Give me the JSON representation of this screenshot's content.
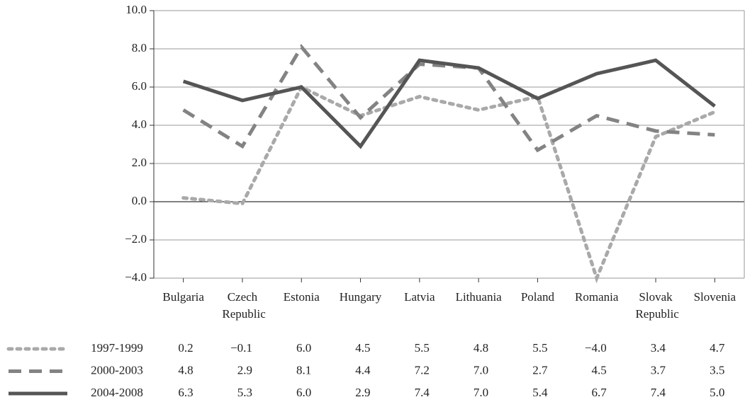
{
  "chart_data": {
    "type": "line",
    "categories": [
      "Bulgaria",
      "Czech Republic",
      "Estonia",
      "Hungary",
      "Latvia",
      "Lithuania",
      "Poland",
      "Romania",
      "Slovak Republic",
      "Slovenia"
    ],
    "ylim": [
      -4,
      10
    ],
    "yticks": [
      {
        "value": -4,
        "label": "−4.0"
      },
      {
        "value": -2,
        "label": "−2.0"
      },
      {
        "value": 0,
        "label": "0.0"
      },
      {
        "value": 2,
        "label": "2.0"
      },
      {
        "value": 4,
        "label": "4.0"
      },
      {
        "value": 6,
        "label": "6.0"
      },
      {
        "value": 8,
        "label": "8.0"
      },
      {
        "value": 10,
        "label": "10.0"
      }
    ],
    "grid": true,
    "series": [
      {
        "name": "1997-1999",
        "color": "#a9a9a9",
        "dash": "dotted",
        "values": [
          0.2,
          -0.1,
          6.0,
          4.5,
          5.5,
          4.8,
          5.5,
          -4.0,
          3.4,
          4.7
        ],
        "value_labels": [
          "0.2",
          "−0.1",
          "6.0",
          "4.5",
          "5.5",
          "4.8",
          "5.5",
          "−4.0",
          "3.4",
          "4.7"
        ]
      },
      {
        "name": "2000-2003",
        "color": "#838383",
        "dash": "dashed",
        "values": [
          4.8,
          2.9,
          8.1,
          4.4,
          7.2,
          7.0,
          2.7,
          4.5,
          3.7,
          3.5
        ],
        "value_labels": [
          "4.8",
          "2.9",
          "8.1",
          "4.4",
          "7.2",
          "7.0",
          "2.7",
          "4.5",
          "3.7",
          "3.5"
        ]
      },
      {
        "name": "2004-2008",
        "color": "#555555",
        "dash": "solid",
        "values": [
          6.3,
          5.3,
          6.0,
          2.9,
          7.4,
          7.0,
          5.4,
          6.7,
          7.4,
          5.0
        ],
        "value_labels": [
          "6.3",
          "5.3",
          "6.0",
          "2.9",
          "7.4",
          "7.0",
          "5.4",
          "6.7",
          "7.4",
          "5.0"
        ]
      }
    ]
  }
}
